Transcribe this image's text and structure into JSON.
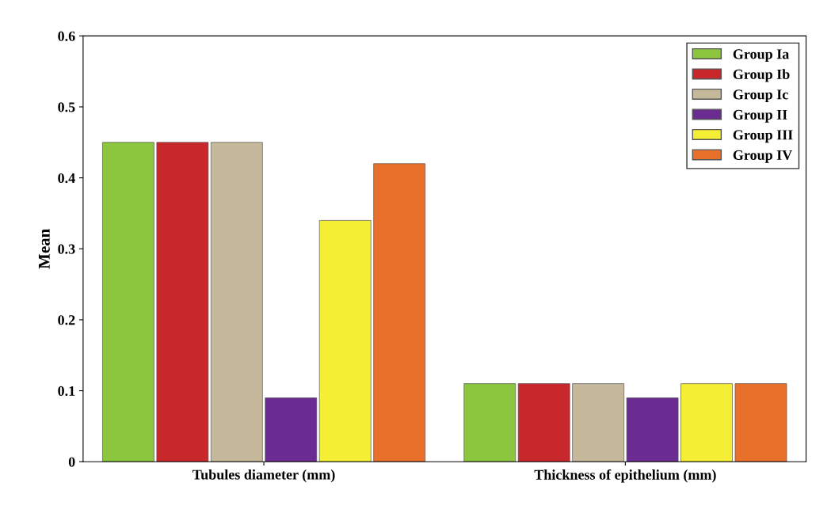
{
  "chart_data": {
    "type": "bar",
    "ylabel": "Mean",
    "categories": [
      "Tubules diameter (mm)",
      "Thickness of epithelium (mm)"
    ],
    "series": [
      {
        "name": "Group Ia",
        "color": "#8cc63e",
        "values": [
          0.45,
          0.11
        ]
      },
      {
        "name": "Group Ib",
        "color": "#c8282c",
        "values": [
          0.45,
          0.11
        ]
      },
      {
        "name": "Group Ic",
        "color": "#c6b99b",
        "values": [
          0.45,
          0.11
        ]
      },
      {
        "name": "Group II",
        "color": "#6b2c91",
        "values": [
          0.09,
          0.09
        ]
      },
      {
        "name": "Group III",
        "color": "#f4ee34",
        "values": [
          0.34,
          0.11
        ]
      },
      {
        "name": "Group IV",
        "color": "#e9702b",
        "values": [
          0.42,
          0.11
        ]
      }
    ],
    "ylim": [
      0,
      0.6
    ],
    "yticks": [
      0,
      0.1,
      0.2,
      0.3,
      0.4,
      0.5,
      0.6
    ],
    "grid": false,
    "legend": "top right"
  }
}
